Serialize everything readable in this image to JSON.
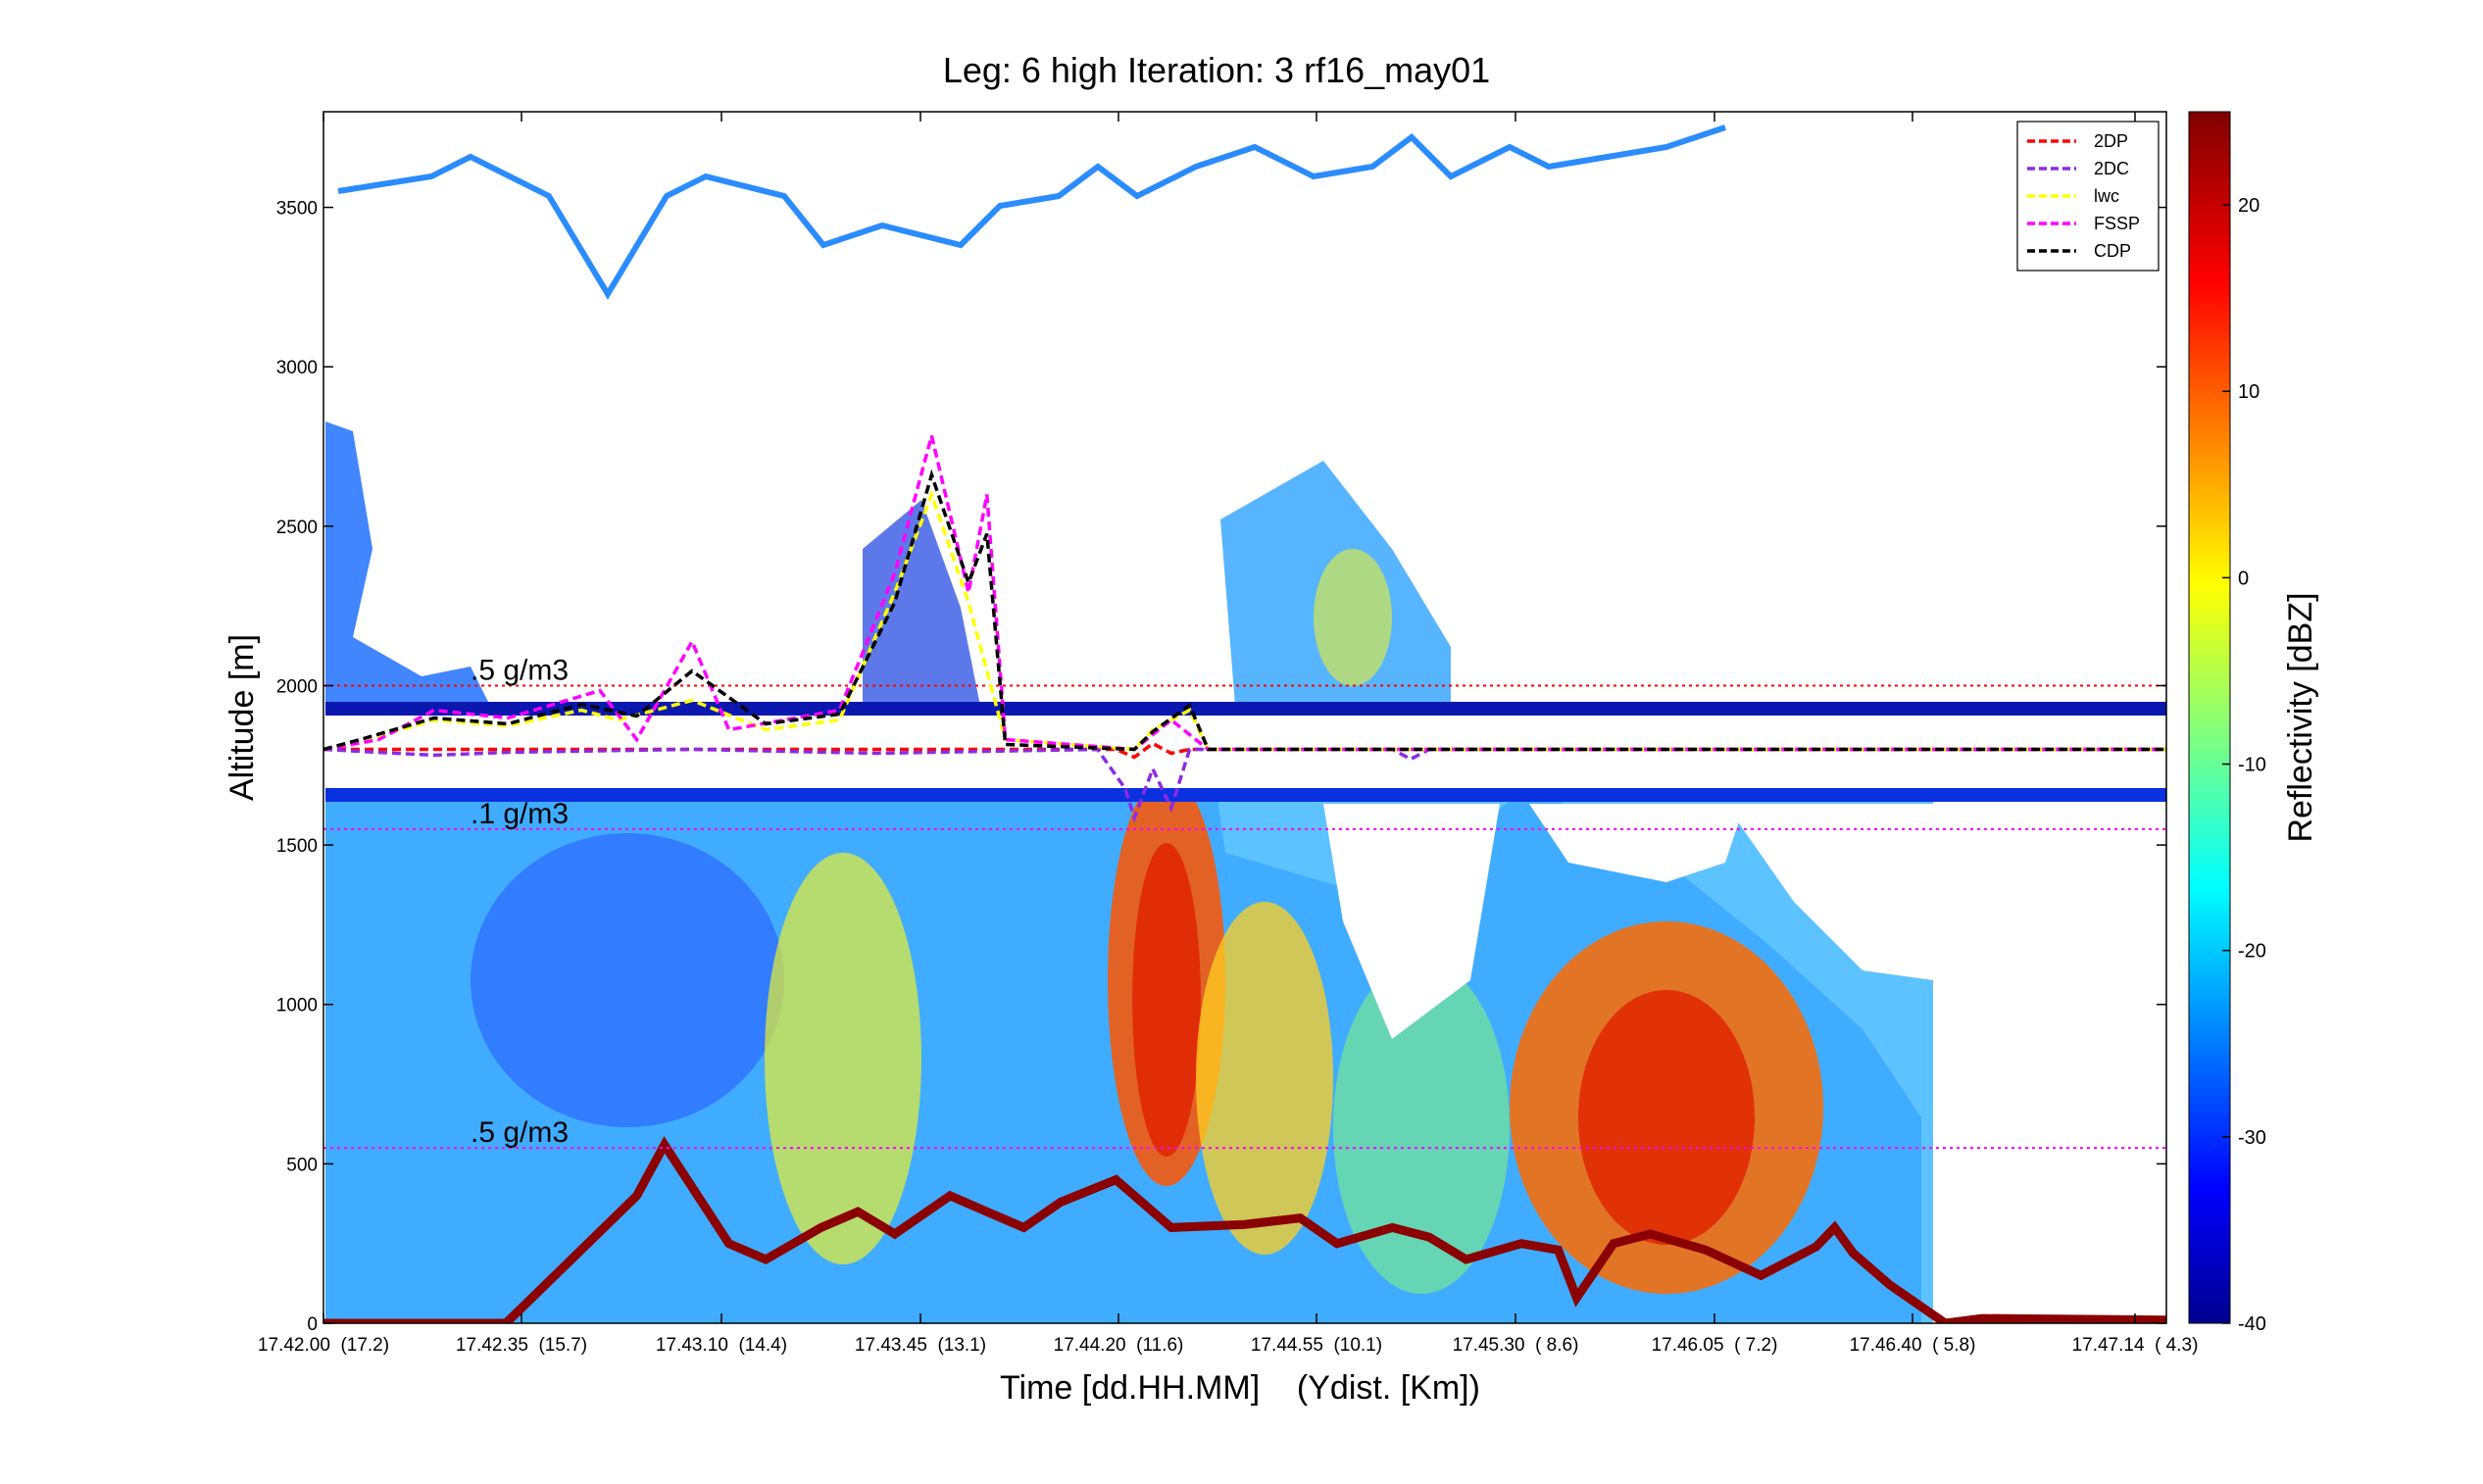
{
  "chart_data": {
    "type": "heatmap",
    "title": "Leg: 6 high Iteration: 3  rf16_may01",
    "xlabel": "Time [dd.HH.MM]    (Ydist. [Km])",
    "ylabel": "Altitude [m]",
    "ylim": [
      0,
      3800
    ],
    "y_ticks": [
      0,
      500,
      1000,
      1500,
      2000,
      2500,
      3000,
      3500
    ],
    "x_ticks": [
      "17.42.00  (17.2)",
      "17.42.35  (15.7)",
      "17.43.10  (14.4)",
      "17.43.45  (13.1)",
      "17.44.20  (11.6)",
      "17.44.55  (10.1)",
      "17.45.30  ( 8.6)",
      "17.46.05  ( 7.2)",
      "17.46.40  ( 5.8)",
      "17.47.14  ( 4.3)"
    ],
    "colorbar": {
      "label": "Reflectivity [dBZ]",
      "range": [
        -40,
        25
      ],
      "ticks": [
        -40,
        -30,
        -20,
        -10,
        0,
        10,
        20
      ],
      "colormap": "jet"
    },
    "legend": {
      "position": "top-right",
      "entries": [
        {
          "name": "2DP",
          "color": "#ff0000"
        },
        {
          "name": "2DC",
          "color": "#8b2be2"
        },
        {
          "name": "lwc",
          "color": "#ffff00"
        },
        {
          "name": "FSSP",
          "color": "#ff00ff"
        },
        {
          "name": "CDP",
          "color": "#000000"
        }
      ]
    },
    "annotations": [
      {
        "text": ".5 g/m3",
        "y": 2000
      },
      {
        "text": ".1 g/m3",
        "y": 1550
      },
      {
        "text": ".5 g/m3",
        "y": 550
      }
    ],
    "reference_lines": [
      {
        "y": 2000,
        "color": "#ff0000",
        "style": "dotted"
      },
      {
        "y": 1550,
        "color": "#ff00ff",
        "style": "dotted"
      },
      {
        "y": 550,
        "color": "#ff00ff",
        "style": "dotted"
      }
    ],
    "flight_level_m": 1800,
    "surface_trace": {
      "x_frac": [
        0,
        0.099,
        0.17,
        0.185,
        0.22,
        0.24,
        0.27,
        0.29,
        0.31,
        0.34,
        0.36,
        0.38,
        0.4,
        0.43,
        0.46,
        0.5,
        0.53,
        0.55,
        0.58,
        0.6,
        0.62,
        0.65,
        0.67,
        0.68,
        0.7,
        0.72,
        0.75,
        0.78,
        0.81,
        0.82,
        0.83,
        0.85,
        0.88,
        0.9,
        1.0
      ],
      "alt_m": [
        0,
        0,
        400,
        560,
        250,
        200,
        300,
        350,
        280,
        400,
        350,
        300,
        380,
        450,
        300,
        310,
        330,
        250,
        300,
        270,
        200,
        250,
        230,
        80,
        250,
        280,
        230,
        150,
        240,
        300,
        220,
        120,
        0,
        15,
        10
      ]
    }
  }
}
